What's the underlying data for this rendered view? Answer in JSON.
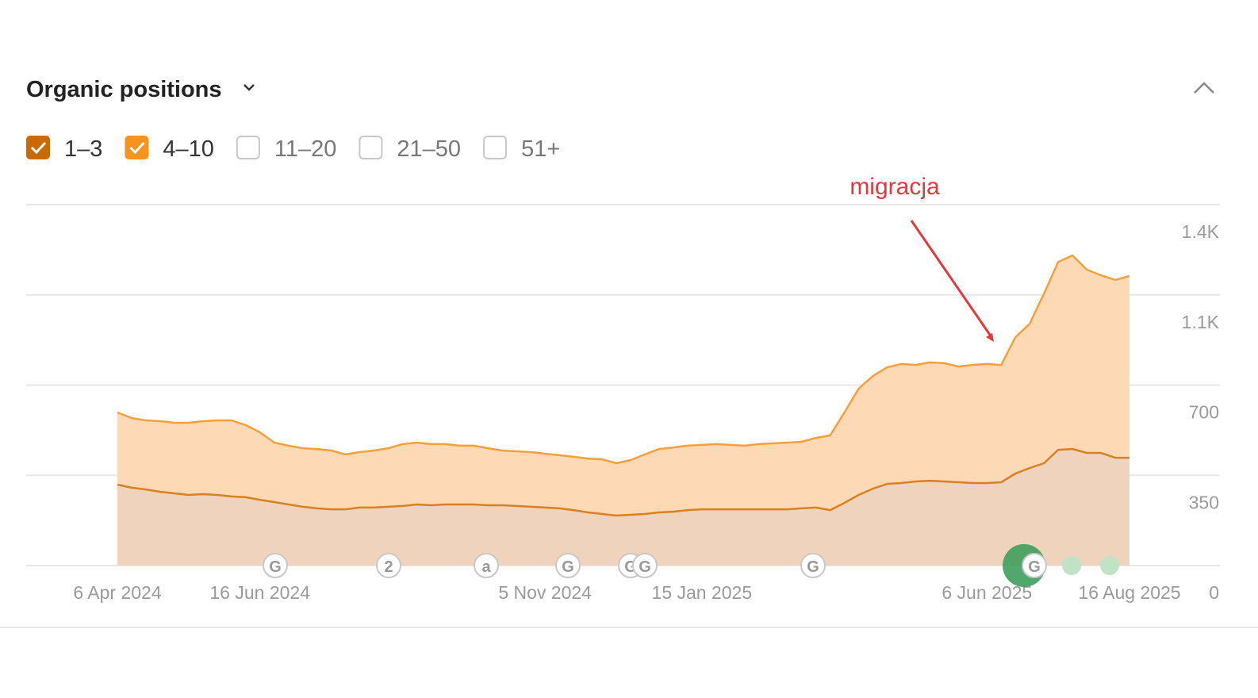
{
  "chart_data": {
    "type": "stacked-area",
    "title": "Organic positions",
    "annotation": "migracja",
    "hidden_series": [
      "11–20",
      "21–50",
      "51+"
    ],
    "events": [
      "G",
      "2",
      "a",
      "G",
      "G",
      "G",
      "G",
      "G"
    ],
    "categories": [
      "6 Apr 2024",
      null,
      null,
      null,
      null,
      null,
      null,
      null,
      null,
      null,
      "16 Jun 2024",
      null,
      null,
      null,
      null,
      null,
      null,
      null,
      null,
      null,
      null,
      null,
      null,
      null,
      null,
      null,
      null,
      null,
      null,
      null,
      "5 Nov 2024",
      null,
      null,
      null,
      null,
      null,
      null,
      null,
      null,
      null,
      null,
      "15 Jan 2025",
      null,
      null,
      null,
      null,
      null,
      null,
      null,
      null,
      null,
      null,
      null,
      null,
      null,
      null,
      null,
      null,
      null,
      null,
      null,
      "6 Jun 2025",
      null,
      null,
      null,
      null,
      null,
      null,
      null,
      null,
      null,
      "16 Aug 2025"
    ],
    "series": [
      {
        "name": "1–3",
        "color": "#d9801f",
        "fill": "#efd3bd",
        "values": [
          314,
          302,
          295,
          286,
          280,
          274,
          277,
          274,
          268,
          265,
          255,
          246,
          237,
          228,
          222,
          218,
          218,
          225,
          225,
          228,
          231,
          237,
          234,
          237,
          237,
          237,
          234,
          234,
          231,
          228,
          225,
          222,
          215,
          206,
          200,
          194,
          197,
          200,
          206,
          209,
          215,
          218,
          218,
          218,
          218,
          218,
          218,
          218,
          222,
          225,
          215,
          243,
          274,
          298,
          317,
          320,
          326,
          329,
          326,
          323,
          320,
          320,
          323,
          357,
          378,
          397,
          449,
          452,
          437,
          437,
          418,
          418
        ]
      },
      {
        "name": "4–10",
        "color": "#f5a03a",
        "fill": "#fdd9b5",
        "values": [
          280,
          270,
          268,
          274,
          274,
          280,
          283,
          289,
          295,
          280,
          262,
          231,
          228,
          227,
          230,
          228,
          213,
          215,
          221,
          227,
          240,
          240,
          237,
          234,
          228,
          228,
          221,
          212,
          212,
          212,
          209,
          206,
          207,
          209,
          212,
          203,
          212,
          231,
          246,
          249,
          250,
          250,
          253,
          250,
          247,
          253,
          256,
          259,
          258,
          270,
          290,
          351,
          412,
          437,
          452,
          462,
          452,
          459,
          459,
          449,
          458,
          462,
          455,
          529,
          560,
          658,
          729,
          751,
          711,
          689,
          690,
          705
        ]
      }
    ],
    "ylim": [
      0,
      1400
    ],
    "yticks": [
      0,
      350,
      700,
      {
        "value": 1050,
        "label": "1.1K"
      },
      {
        "value": 1400,
        "label": "1.4K"
      }
    ],
    "grid": true
  }
}
